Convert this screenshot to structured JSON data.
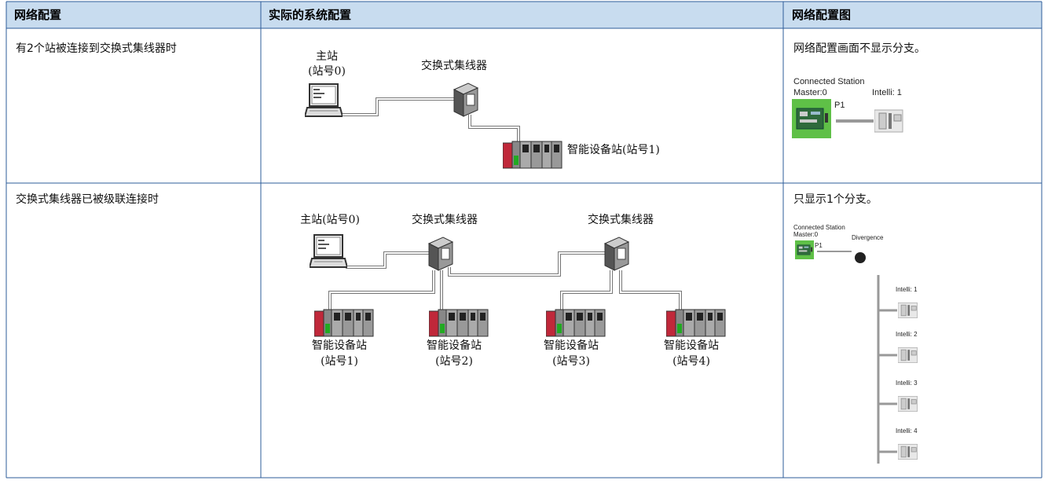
{
  "table": {
    "headers": [
      "网络配置",
      "实际的系统配置",
      "网络配置图"
    ],
    "rows": [
      {
        "condition": "有2个站被连接到交换式集线器时",
        "system": {
          "master": "主站",
          "master_no": "(站号0)",
          "hub": "交换式集线器",
          "device": "智能设备站(站号1)"
        },
        "note": "网络配置画面不显示分支。",
        "screen": {
          "title": "Connected Station",
          "master": "Master:0",
          "port": "P1",
          "device": "Intelli: 1"
        }
      },
      {
        "condition": "交换式集线器已被级联连接时",
        "system": {
          "master": "主站(站号0)",
          "hubs": [
            "交换式集线器",
            "交换式集线器"
          ],
          "devices": [
            {
              "name": "智能设备站",
              "no": "(站号1)"
            },
            {
              "name": "智能设备站",
              "no": "(站号2)"
            },
            {
              "name": "智能设备站",
              "no": "(站号3)"
            },
            {
              "name": "智能设备站",
              "no": "(站号4)"
            }
          ]
        },
        "note": "只显示1个分支。",
        "screen": {
          "title": "Connected Station",
          "master": "Master:0",
          "divergence": "Divergence",
          "port": "P1",
          "devices": [
            "Intelli: 1",
            "Intelli: 2",
            "Intelli: 3",
            "Intelli: 4"
          ]
        }
      }
    ]
  }
}
